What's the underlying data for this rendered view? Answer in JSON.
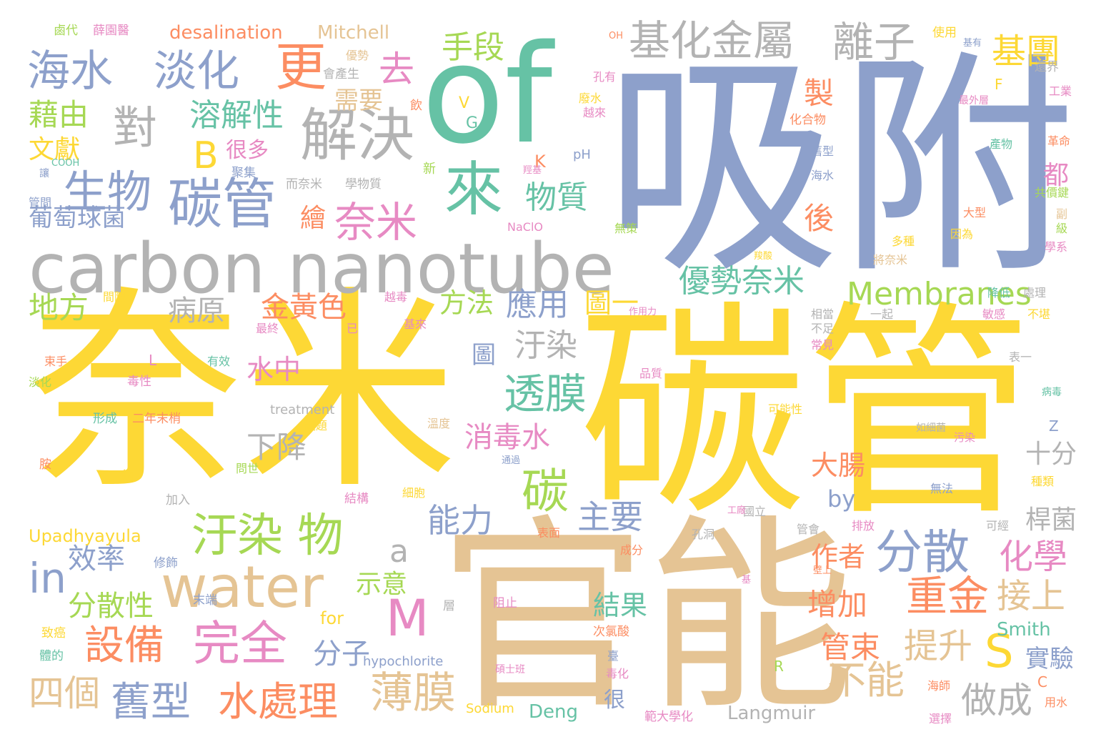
{
  "palette": {
    "yellow": "#fdd835",
    "blue": "#8da0cb",
    "green": "#66c2a5",
    "tan": "#e5c494",
    "orange": "#fc8d62",
    "pink": "#e78ac3",
    "lime": "#a6d854",
    "gray": "#b3b3b3"
  },
  "words": [
    {
      "text": "奈米",
      "color": "yellow"
    },
    {
      "text": "碳管",
      "color": "yellow"
    },
    {
      "text": "吸附",
      "color": "blue"
    },
    {
      "text": "官能",
      "color": "tan"
    },
    {
      "text": "of",
      "color": "green"
    },
    {
      "text": "carbon nanotube",
      "color": "gray"
    },
    {
      "text": "water",
      "color": "tan"
    },
    {
      "text": "基化金屬",
      "color": "gray"
    },
    {
      "text": "離子",
      "color": "gray"
    },
    {
      "text": "基團",
      "color": "yellow"
    },
    {
      "text": "海水",
      "color": "blue"
    },
    {
      "text": "淡化",
      "color": "blue"
    },
    {
      "text": "更",
      "color": "orange"
    },
    {
      "text": "去",
      "color": "pink"
    },
    {
      "text": "手段",
      "color": "lime"
    },
    {
      "text": "對",
      "color": "gray"
    },
    {
      "text": "解決",
      "color": "gray"
    },
    {
      "text": "碳管",
      "color": "blue"
    },
    {
      "text": "生物",
      "color": "blue"
    },
    {
      "text": "來",
      "color": "green"
    },
    {
      "text": "奈米",
      "color": "pink"
    },
    {
      "text": "藉由",
      "color": "lime"
    },
    {
      "text": "B",
      "color": "yellow"
    },
    {
      "text": "溶解性",
      "color": "green"
    },
    {
      "text": "需要",
      "color": "tan"
    },
    {
      "text": "製",
      "color": "orange"
    },
    {
      "text": "物質",
      "color": "green"
    },
    {
      "text": "文獻",
      "color": "yellow"
    },
    {
      "text": "很多",
      "color": "pink"
    },
    {
      "text": "葡萄球菌",
      "color": "blue"
    },
    {
      "text": "繪",
      "color": "orange"
    },
    {
      "text": "後",
      "color": "orange"
    },
    {
      "text": "都",
      "color": "pink"
    },
    {
      "text": "優勢奈米",
      "color": "green"
    },
    {
      "text": "Membranes",
      "color": "lime"
    },
    {
      "text": "地方",
      "color": "lime"
    },
    {
      "text": "病原",
      "color": "gray"
    },
    {
      "text": "金黃色",
      "color": "orange"
    },
    {
      "text": "方法",
      "color": "lime"
    },
    {
      "text": "應用",
      "color": "blue"
    },
    {
      "text": "圖一",
      "color": "yellow"
    },
    {
      "text": "汙染",
      "color": "gray"
    },
    {
      "text": "透膜",
      "color": "green"
    },
    {
      "text": "汙染 物",
      "color": "lime"
    },
    {
      "text": "分散",
      "color": "blue"
    },
    {
      "text": "碳",
      "color": "lime"
    },
    {
      "text": "主要",
      "color": "blue"
    },
    {
      "text": "能力",
      "color": "blue"
    },
    {
      "text": "消毒水",
      "color": "pink"
    },
    {
      "text": "下降",
      "color": "gray"
    },
    {
      "text": "水中",
      "color": "pink"
    },
    {
      "text": "a",
      "color": "gray"
    },
    {
      "text": "M",
      "color": "pink"
    },
    {
      "text": "in",
      "color": "blue"
    },
    {
      "text": "效率",
      "color": "blue"
    },
    {
      "text": "分散性",
      "color": "lime"
    },
    {
      "text": "設備",
      "color": "orange"
    },
    {
      "text": "完全",
      "color": "pink"
    },
    {
      "text": "示意",
      "color": "lime"
    },
    {
      "text": "分子",
      "color": "blue"
    },
    {
      "text": "作者",
      "color": "orange"
    },
    {
      "text": "結果",
      "color": "green"
    },
    {
      "text": "增加",
      "color": "orange"
    },
    {
      "text": "重金",
      "color": "orange"
    },
    {
      "text": "接上",
      "color": "tan"
    },
    {
      "text": "化學",
      "color": "pink"
    },
    {
      "text": "S",
      "color": "yellow"
    },
    {
      "text": "管束",
      "color": "orange"
    },
    {
      "text": "提升",
      "color": "tan"
    },
    {
      "text": "四個",
      "color": "tan"
    },
    {
      "text": "舊型",
      "color": "blue"
    },
    {
      "text": "水處理",
      "color": "orange"
    },
    {
      "text": "薄膜",
      "color": "tan"
    },
    {
      "text": "不能",
      "color": "tan"
    },
    {
      "text": "做成",
      "color": "gray"
    },
    {
      "text": "實驗",
      "color": "blue"
    },
    {
      "text": "十分",
      "color": "gray"
    },
    {
      "text": "桿菌",
      "color": "gray"
    },
    {
      "text": "大腸",
      "color": "orange"
    },
    {
      "text": "by",
      "color": "blue"
    },
    {
      "text": "Upadhyayula",
      "color": "yellow"
    },
    {
      "text": "Smith",
      "color": "green"
    },
    {
      "text": "Deng",
      "color": "green"
    },
    {
      "text": "Langmuir",
      "color": "gray"
    },
    {
      "text": "Sodium",
      "color": "yellow"
    },
    {
      "text": "hypochlorite",
      "color": "blue"
    },
    {
      "text": "desalination",
      "color": "orange"
    },
    {
      "text": "Mitchell",
      "color": "tan"
    },
    {
      "text": "treatment",
      "color": "gray"
    },
    {
      "text": "for",
      "color": "yellow"
    },
    {
      "text": "鹵代",
      "color": "lime"
    },
    {
      "text": "薛園醫",
      "color": "pink"
    },
    {
      "text": "使用",
      "color": "yellow"
    },
    {
      "text": "基有",
      "color": "blue"
    },
    {
      "text": "還界",
      "color": "gray"
    },
    {
      "text": "優勢",
      "color": "tan"
    },
    {
      "text": "會產生",
      "color": "gray"
    },
    {
      "text": "孔有",
      "color": "pink"
    },
    {
      "text": "工業",
      "color": "pink"
    },
    {
      "text": "最外層",
      "color": "pink"
    },
    {
      "text": "COOH",
      "color": "green"
    },
    {
      "text": "讓",
      "color": "blue"
    },
    {
      "text": "管間",
      "color": "blue"
    },
    {
      "text": "聚集",
      "color": "blue"
    },
    {
      "text": "而奈米",
      "color": "gray"
    },
    {
      "text": "學物質",
      "color": "gray"
    },
    {
      "text": "新",
      "color": "lime"
    },
    {
      "text": "飲",
      "color": "orange"
    },
    {
      "text": "K",
      "color": "orange"
    },
    {
      "text": "pH",
      "color": "blue"
    },
    {
      "text": "羥基",
      "color": "pink"
    },
    {
      "text": "V",
      "color": "yellow"
    },
    {
      "text": "G",
      "color": "green"
    },
    {
      "text": "廢水",
      "color": "yellow"
    },
    {
      "text": "越來",
      "color": "pink"
    },
    {
      "text": "化合物",
      "color": "orange"
    },
    {
      "text": "舊型",
      "color": "blue"
    },
    {
      "text": "海水",
      "color": "blue"
    },
    {
      "text": "產物",
      "color": "green"
    },
    {
      "text": "革命",
      "color": "orange"
    },
    {
      "text": "共價鍵",
      "color": "lime"
    },
    {
      "text": "副",
      "color": "tan"
    },
    {
      "text": "級",
      "color": "lime"
    },
    {
      "text": "學系",
      "color": "pink"
    },
    {
      "text": "大型",
      "color": "orange"
    },
    {
      "text": "因為",
      "color": "yellow"
    },
    {
      "text": "NaClO",
      "color": "pink"
    },
    {
      "text": "無策",
      "color": "lime"
    },
    {
      "text": "羧酸",
      "color": "yellow"
    },
    {
      "text": "多種",
      "color": "yellow"
    },
    {
      "text": "將奈米",
      "color": "tan"
    },
    {
      "text": "降低",
      "color": "green"
    },
    {
      "text": "處理",
      "color": "gray"
    },
    {
      "text": "間隙",
      "color": "yellow"
    },
    {
      "text": "越毒",
      "color": "pink"
    },
    {
      "text": "作用力",
      "color": "pink"
    },
    {
      "text": "一起",
      "color": "gray"
    },
    {
      "text": "相當",
      "color": "gray"
    },
    {
      "text": "不足",
      "color": "gray"
    },
    {
      "text": "常見",
      "color": "pink"
    },
    {
      "text": "敏感",
      "color": "pink"
    },
    {
      "text": "不堪",
      "color": "yellow"
    },
    {
      "text": "最終",
      "color": "pink"
    },
    {
      "text": "已",
      "color": "pink"
    },
    {
      "text": "基來",
      "color": "pink"
    },
    {
      "text": "有效",
      "color": "green"
    },
    {
      "text": "束手",
      "color": "orange"
    },
    {
      "text": "淡化",
      "color": "lime"
    },
    {
      "text": "毒性",
      "color": "pink"
    },
    {
      "text": "L",
      "color": "pink"
    },
    {
      "text": "品質",
      "color": "pink"
    },
    {
      "text": "表一",
      "color": "gray"
    },
    {
      "text": "病毒",
      "color": "green"
    },
    {
      "text": "形成",
      "color": "green"
    },
    {
      "text": "二年末梢",
      "color": "orange"
    },
    {
      "text": "溫度",
      "color": "tan"
    },
    {
      "text": "議題",
      "color": "yellow"
    },
    {
      "text": "可能性",
      "color": "yellow"
    },
    {
      "text": "如細菌",
      "color": "gray"
    },
    {
      "text": "Z",
      "color": "blue"
    },
    {
      "text": "污染",
      "color": "pink"
    },
    {
      "text": "胺",
      "color": "orange"
    },
    {
      "text": "鈉",
      "color": "yellow"
    },
    {
      "text": "問世",
      "color": "lime"
    },
    {
      "text": "通過",
      "color": "blue"
    },
    {
      "text": "結構",
      "color": "pink"
    },
    {
      "text": "細胞",
      "color": "yellow"
    },
    {
      "text": "無法",
      "color": "blue"
    },
    {
      "text": "種類",
      "color": "yellow"
    },
    {
      "text": "加入",
      "color": "gray"
    },
    {
      "text": "國立",
      "color": "gray"
    },
    {
      "text": "工廠",
      "color": "pink"
    },
    {
      "text": "管會",
      "color": "gray"
    },
    {
      "text": "排放",
      "color": "pink"
    },
    {
      "text": "可經",
      "color": "gray"
    },
    {
      "text": "孔洞",
      "color": "gray"
    },
    {
      "text": "表面",
      "color": "orange"
    },
    {
      "text": "修飾",
      "color": "blue"
    },
    {
      "text": "成分",
      "color": "orange"
    },
    {
      "text": "壁上",
      "color": "orange"
    },
    {
      "text": "阻止",
      "color": "pink"
    },
    {
      "text": "層",
      "color": "gray"
    },
    {
      "text": "基",
      "color": "pink"
    },
    {
      "text": "末端",
      "color": "blue"
    },
    {
      "text": "次氯酸",
      "color": "orange"
    },
    {
      "text": "致癌",
      "color": "yellow"
    },
    {
      "text": "體的",
      "color": "green"
    },
    {
      "text": "毒化",
      "color": "pink"
    },
    {
      "text": "碩士班",
      "color": "pink"
    },
    {
      "text": "R",
      "color": "lime"
    },
    {
      "text": "海師",
      "color": "orange"
    },
    {
      "text": "C",
      "color": "orange"
    },
    {
      "text": "用水",
      "color": "orange"
    },
    {
      "text": "選擇",
      "color": "pink"
    },
    {
      "text": "範大學化",
      "color": "pink"
    },
    {
      "text": "很",
      "color": "blue"
    },
    {
      "text": "F",
      "color": "yellow"
    },
    {
      "text": "OH",
      "color": "orange"
    },
    {
      "text": "圖",
      "color": "blue"
    },
    {
      "text": "臺",
      "color": "blue"
    }
  ]
}
